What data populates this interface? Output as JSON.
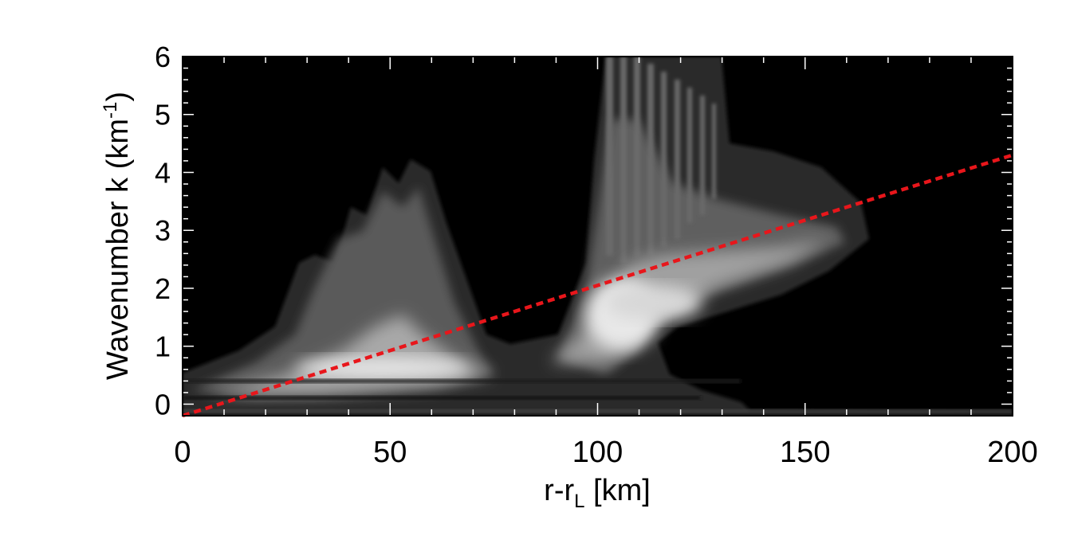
{
  "chart_data": {
    "type": "heatmap",
    "title": "",
    "xlabel": "r-r",
    "xlabel_sub": "L",
    "xlabel_unit": " [km]",
    "ylabel": "Wavenumber k (km",
    "ylabel_sup": "-1",
    "ylabel_end": ")",
    "xlim": [
      0,
      200
    ],
    "ylim": [
      -0.2,
      6
    ],
    "x_ticks": [
      0,
      50,
      100,
      150,
      200
    ],
    "x_tick_labels": [
      "0",
      "50",
      "100",
      "150",
      "200"
    ],
    "y_ticks": [
      0,
      1,
      2,
      3,
      4,
      5,
      6
    ],
    "y_tick_labels": [
      "0",
      "1",
      "2",
      "3",
      "4",
      "5",
      "6"
    ],
    "background_color": "#000000",
    "colormap": "grayscale",
    "grid": false,
    "overlay_line": {
      "style": "dotted",
      "color": "#e8161b",
      "x": [
        0,
        200
      ],
      "y": [
        -0.2,
        4.3
      ]
    }
  }
}
